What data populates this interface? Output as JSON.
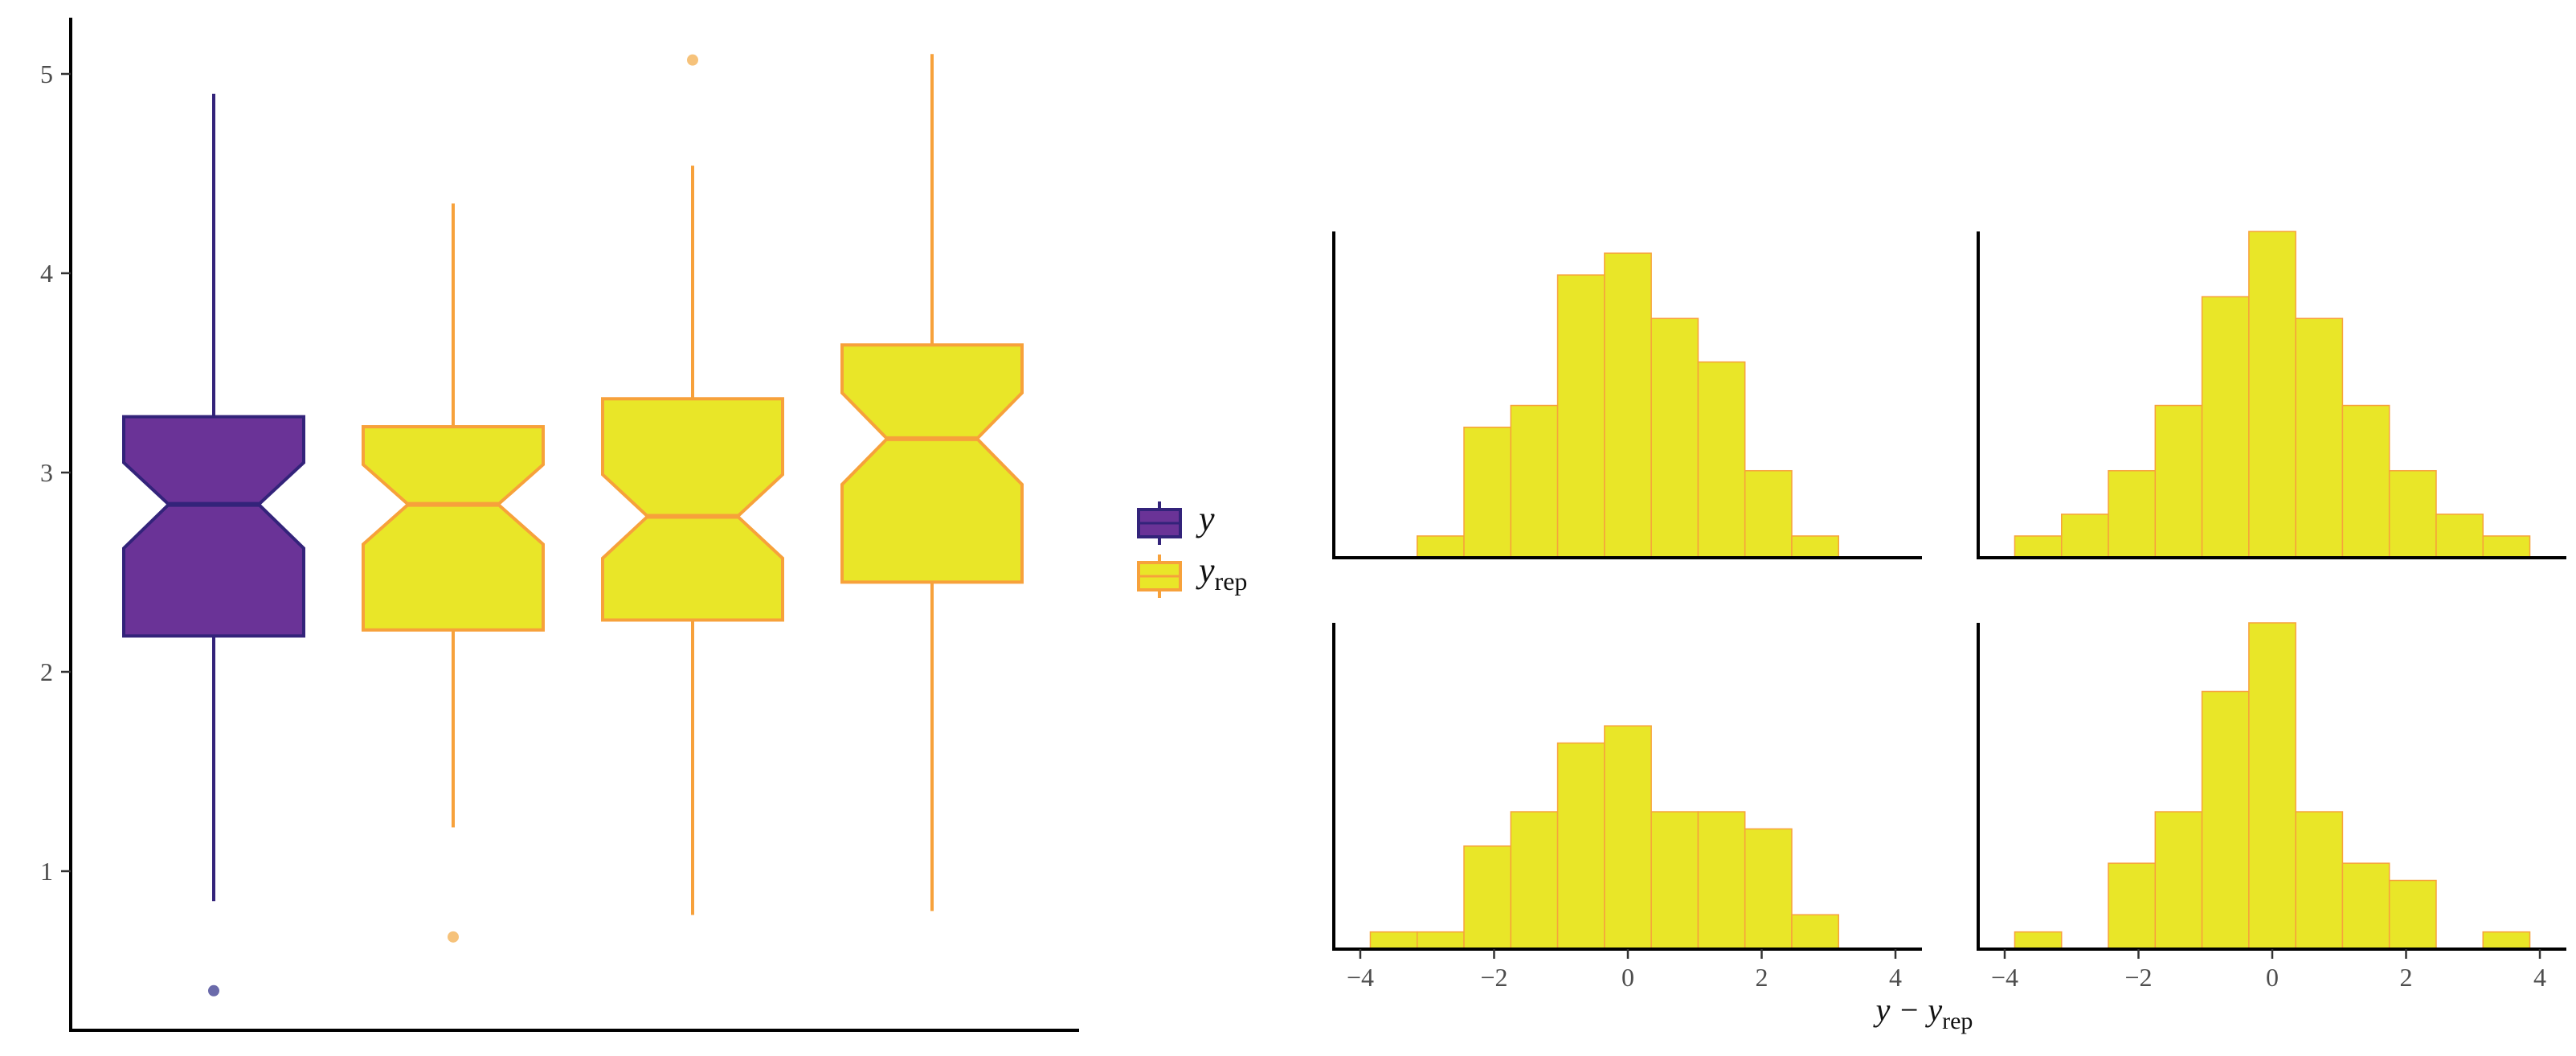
{
  "colors": {
    "y_fill": "#6a3397",
    "y_line": "#33237a",
    "y_outlier": "#6a6aaa",
    "yrep_fill": "#e9e628",
    "yrep_line": "#f7a13b",
    "yrep_outlier": "#f6c27a",
    "hist_fill": "#e9e628",
    "hist_line": "#f7a13b"
  },
  "chart_data": [
    {
      "type": "boxplot",
      "title": "",
      "xlabel": "",
      "ylabel": "",
      "ylim": [
        0.25,
        5.25
      ],
      "y_ticks": [
        1,
        2,
        3,
        4,
        5
      ],
      "y_tick_labels": [
        "1",
        "2",
        "3",
        "4",
        "5"
      ],
      "notched": true,
      "grid": false,
      "boxes": [
        {
          "series": "y",
          "whisker_low": 0.85,
          "q1": 2.18,
          "median": 2.84,
          "q3": 3.28,
          "whisker_high": 4.9,
          "notch_low": 2.62,
          "notch_high": 3.05,
          "outliers": [
            0.4
          ]
        },
        {
          "series": "yrep",
          "whisker_low": 1.22,
          "q1": 2.21,
          "median": 2.84,
          "q3": 3.23,
          "whisker_high": 4.35,
          "notch_low": 2.64,
          "notch_high": 3.04,
          "outliers": [
            0.67
          ]
        },
        {
          "series": "yrep",
          "whisker_low": 0.78,
          "q1": 2.26,
          "median": 2.78,
          "q3": 3.37,
          "whisker_high": 4.54,
          "notch_low": 2.57,
          "notch_high": 2.99,
          "outliers": [
            5.07
          ]
        },
        {
          "series": "yrep",
          "whisker_low": 0.8,
          "q1": 2.45,
          "median": 3.17,
          "q3": 3.64,
          "whisker_high": 5.1,
          "notch_low": 2.94,
          "notch_high": 3.4,
          "outliers": []
        }
      ],
      "legend": {
        "position": "right",
        "items": [
          {
            "key": "y",
            "label": "y",
            "sub": ""
          },
          {
            "key": "yrep",
            "label": "y",
            "sub": "rep"
          }
        ]
      }
    },
    {
      "type": "histogram",
      "facets": 4,
      "layout": "2x2",
      "shared_x": true,
      "xlim": [
        -4.3,
        4.3
      ],
      "x_ticks": [
        -4,
        -2,
        0,
        2,
        4
      ],
      "x_tick_labels": [
        "−4",
        "−2",
        "0",
        "2",
        "4"
      ],
      "xlabel": {
        "main": "y − y",
        "sub": "rep"
      },
      "y_axis_labels": false,
      "bin_width": 0.7,
      "panels": [
        {
          "bins": [
            {
              "x0": -3.15,
              "x1": -2.45,
              "count": 1
            },
            {
              "x0": -2.45,
              "x1": -1.75,
              "count": 6
            },
            {
              "x0": -1.75,
              "x1": -1.05,
              "count": 7
            },
            {
              "x0": -1.05,
              "x1": -0.35,
              "count": 13
            },
            {
              "x0": -0.35,
              "x1": 0.35,
              "count": 14
            },
            {
              "x0": 0.35,
              "x1": 1.05,
              "count": 11
            },
            {
              "x0": 1.05,
              "x1": 1.75,
              "count": 9
            },
            {
              "x0": 1.75,
              "x1": 2.45,
              "count": 4
            },
            {
              "x0": 2.45,
              "x1": 3.15,
              "count": 1
            }
          ],
          "ymax": 15
        },
        {
          "bins": [
            {
              "x0": -3.85,
              "x1": -3.15,
              "count": 1
            },
            {
              "x0": -3.15,
              "x1": -2.45,
              "count": 2
            },
            {
              "x0": -2.45,
              "x1": -1.75,
              "count": 4
            },
            {
              "x0": -1.75,
              "x1": -1.05,
              "count": 7
            },
            {
              "x0": -1.05,
              "x1": -0.35,
              "count": 12
            },
            {
              "x0": -0.35,
              "x1": 0.35,
              "count": 15
            },
            {
              "x0": 0.35,
              "x1": 1.05,
              "count": 11
            },
            {
              "x0": 1.05,
              "x1": 1.75,
              "count": 7
            },
            {
              "x0": 1.75,
              "x1": 2.45,
              "count": 4
            },
            {
              "x0": 2.45,
              "x1": 3.15,
              "count": 2
            },
            {
              "x0": 3.15,
              "x1": 3.85,
              "count": 1
            }
          ],
          "ymax": 15
        },
        {
          "bins": [
            {
              "x0": -3.85,
              "x1": -3.15,
              "count": 1
            },
            {
              "x0": -3.15,
              "x1": -2.45,
              "count": 1
            },
            {
              "x0": -2.45,
              "x1": -1.75,
              "count": 6
            },
            {
              "x0": -1.75,
              "x1": -1.05,
              "count": 8
            },
            {
              "x0": -1.05,
              "x1": -0.35,
              "count": 12
            },
            {
              "x0": -0.35,
              "x1": 0.35,
              "count": 13
            },
            {
              "x0": 0.35,
              "x1": 1.05,
              "count": 8
            },
            {
              "x0": 1.05,
              "x1": 1.75,
              "count": 8
            },
            {
              "x0": 1.75,
              "x1": 2.45,
              "count": 7
            },
            {
              "x0": 2.45,
              "x1": 3.15,
              "count": 2
            }
          ],
          "ymax": 19
        },
        {
          "bins": [
            {
              "x0": -3.85,
              "x1": -3.15,
              "count": 1
            },
            {
              "x0": -2.45,
              "x1": -1.75,
              "count": 5
            },
            {
              "x0": -1.75,
              "x1": -1.05,
              "count": 8
            },
            {
              "x0": -1.05,
              "x1": -0.35,
              "count": 15
            },
            {
              "x0": -0.35,
              "x1": 0.35,
              "count": 19
            },
            {
              "x0": 0.35,
              "x1": 1.05,
              "count": 8
            },
            {
              "x0": 1.05,
              "x1": 1.75,
              "count": 5
            },
            {
              "x0": 1.75,
              "x1": 2.45,
              "count": 4
            },
            {
              "x0": 3.15,
              "x1": 3.85,
              "count": 1
            }
          ],
          "ymax": 19
        }
      ]
    }
  ]
}
